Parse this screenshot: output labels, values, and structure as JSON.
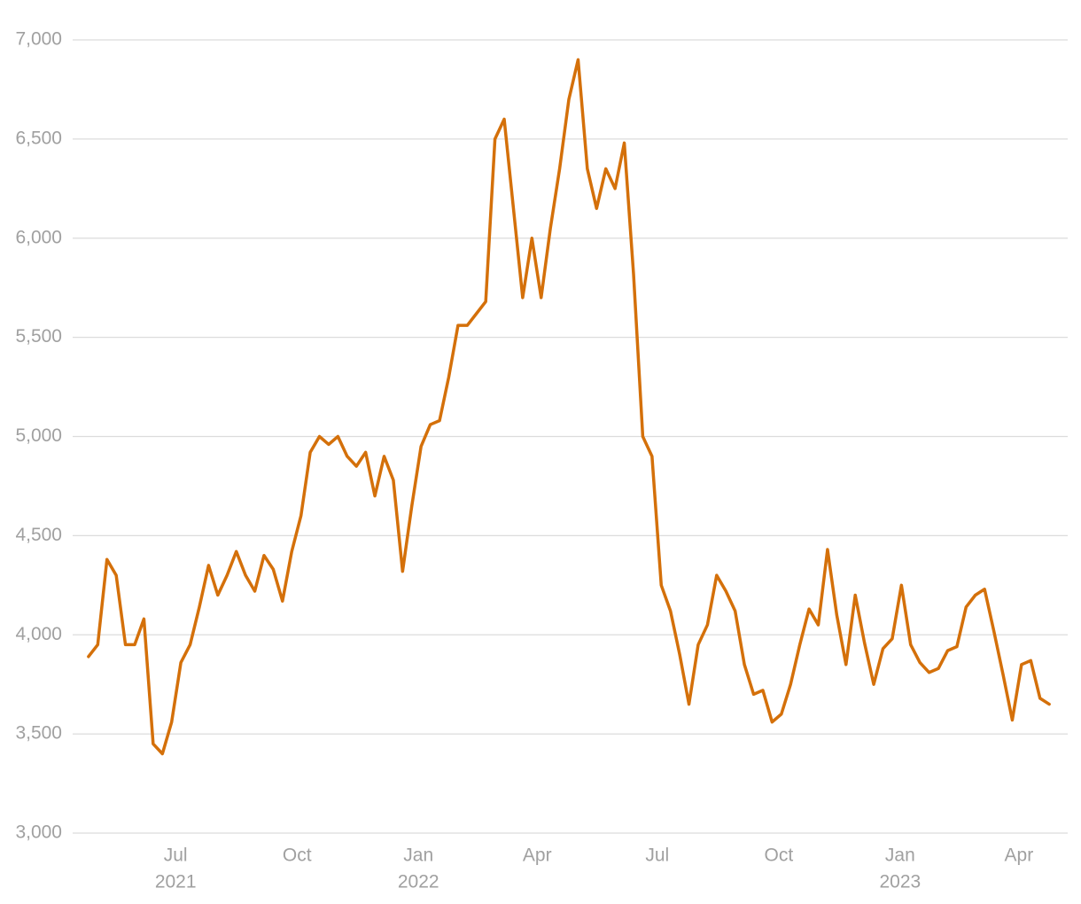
{
  "chart_data": {
    "type": "line",
    "x": [
      "2021-04-26",
      "2021-05-03",
      "2021-05-10",
      "2021-05-17",
      "2021-05-24",
      "2021-05-31",
      "2021-06-07",
      "2021-06-14",
      "2021-06-21",
      "2021-06-28",
      "2021-07-05",
      "2021-07-12",
      "2021-07-19",
      "2021-07-26",
      "2021-08-02",
      "2021-08-09",
      "2021-08-16",
      "2021-08-23",
      "2021-08-30",
      "2021-09-06",
      "2021-09-13",
      "2021-09-20",
      "2021-09-27",
      "2021-10-04",
      "2021-10-11",
      "2021-10-18",
      "2021-10-25",
      "2021-11-01",
      "2021-11-08",
      "2021-11-15",
      "2021-11-22",
      "2021-11-29",
      "2021-12-06",
      "2021-12-13",
      "2021-12-20",
      "2021-12-27",
      "2022-01-03",
      "2022-01-10",
      "2022-01-17",
      "2022-01-24",
      "2022-01-31",
      "2022-02-07",
      "2022-02-14",
      "2022-02-21",
      "2022-02-28",
      "2022-03-07",
      "2022-03-14",
      "2022-03-21",
      "2022-03-28",
      "2022-04-04",
      "2022-04-11",
      "2022-04-18",
      "2022-04-25",
      "2022-05-02",
      "2022-05-09",
      "2022-05-16",
      "2022-05-23",
      "2022-05-30",
      "2022-06-06",
      "2022-06-13",
      "2022-06-20",
      "2022-06-27",
      "2022-07-04",
      "2022-07-11",
      "2022-07-18",
      "2022-07-25",
      "2022-08-01",
      "2022-08-08",
      "2022-08-15",
      "2022-08-22",
      "2022-08-29",
      "2022-09-05",
      "2022-09-12",
      "2022-09-19",
      "2022-09-26",
      "2022-10-03",
      "2022-10-10",
      "2022-10-17",
      "2022-10-24",
      "2022-10-31",
      "2022-11-07",
      "2022-11-14",
      "2022-11-21",
      "2022-11-28",
      "2022-12-05",
      "2022-12-12",
      "2022-12-19",
      "2022-12-26",
      "2023-01-02",
      "2023-01-09",
      "2023-01-16",
      "2023-01-23",
      "2023-01-30",
      "2023-02-06",
      "2023-02-13",
      "2023-02-20",
      "2023-02-27",
      "2023-03-06",
      "2023-03-13",
      "2023-03-20",
      "2023-03-27",
      "2023-04-03",
      "2023-04-10",
      "2023-04-17",
      "2023-04-24"
    ],
    "series": [
      {
        "color": "#d4700a",
        "values": [
          3890,
          3950,
          4380,
          4300,
          3950,
          3950,
          4080,
          3450,
          3400,
          3560,
          3860,
          3950,
          4140,
          4350,
          4200,
          4300,
          4420,
          4300,
          4220,
          4400,
          4330,
          4170,
          4420,
          4600,
          4920,
          5000,
          4960,
          5000,
          4900,
          4850,
          4920,
          4700,
          4900,
          4780,
          4320,
          4650,
          4950,
          5060,
          5080,
          5300,
          5560,
          5560,
          5620,
          5680,
          6500,
          6600,
          6150,
          5700,
          6000,
          5700,
          6050,
          6350,
          6700,
          6900,
          6350,
          6150,
          6350,
          6250,
          6480,
          5820,
          5000,
          4900,
          4250,
          4120,
          3900,
          3650,
          3950,
          4050,
          4300,
          4220,
          4120,
          3850,
          3700,
          3720,
          3560,
          3600,
          3750,
          3950,
          4130,
          4050,
          4430,
          4100,
          3850,
          4200,
          3960,
          3750,
          3930,
          3980,
          4250,
          3950,
          3860,
          3810,
          3830,
          3920,
          3940,
          4140,
          4200,
          4230,
          4020,
          3800,
          3570,
          3850,
          3870,
          3680,
          3650
        ]
      }
    ],
    "xlim": [
      "2021-04-14",
      "2023-05-08"
    ],
    "xticks": [
      {
        "value": "2021-07-01",
        "label": "Jul",
        "year": "2021"
      },
      {
        "value": "2021-10-01",
        "label": "Oct"
      },
      {
        "value": "2022-01-01",
        "label": "Jan",
        "year": "2022"
      },
      {
        "value": "2022-04-01",
        "label": "Apr"
      },
      {
        "value": "2022-07-01",
        "label": "Jul"
      },
      {
        "value": "2022-10-01",
        "label": "Oct"
      },
      {
        "value": "2023-01-01",
        "label": "Jan",
        "year": "2023"
      },
      {
        "value": "2023-04-01",
        "label": "Apr"
      }
    ],
    "ylim": [
      3000,
      7100
    ],
    "yticks": [
      {
        "value": 3000,
        "label": "3,000"
      },
      {
        "value": 3500,
        "label": "3,500"
      },
      {
        "value": 4000,
        "label": "4,000"
      },
      {
        "value": 4500,
        "label": "4,500"
      },
      {
        "value": 5000,
        "label": "5,000"
      },
      {
        "value": 5500,
        "label": "5,500"
      },
      {
        "value": 6000,
        "label": "6,000"
      },
      {
        "value": 6500,
        "label": "6,500"
      },
      {
        "value": 7000,
        "label": "7,000"
      }
    ],
    "grid": true
  }
}
